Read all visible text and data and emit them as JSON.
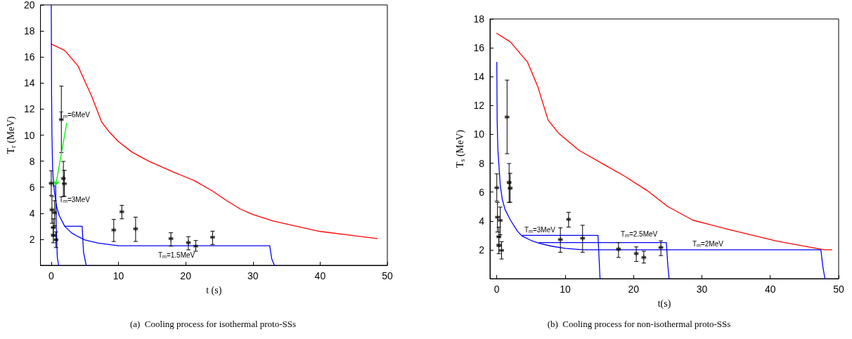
{
  "chart_data": [
    {
      "type": "line",
      "xlabel": "t (s)",
      "ylabel": "T$_{r}$ (MeV)",
      "xlim": [
        -1.6,
        50
      ],
      "xticks": [
        0,
        10,
        20,
        30,
        40,
        50
      ],
      "ylim": [
        0,
        20
      ],
      "yticks": [
        2,
        4,
        6,
        8,
        10,
        12,
        14,
        16,
        18,
        20
      ],
      "series": [
        {
          "color": "#ff0000",
          "x": [
            0,
            2,
            4,
            4.5,
            6,
            7.5,
            8.7,
            10,
            12,
            14.5,
            18,
            21.3,
            24,
            26,
            28.2,
            30,
            33,
            36.5,
            40,
            44.7,
            48.5
          ],
          "values": [
            17.0,
            16.5,
            15.3,
            14.7,
            13.0,
            11.0,
            10.2,
            9.5,
            8.7,
            8.0,
            7.2,
            6.5,
            5.7,
            5.0,
            4.3,
            3.9,
            3.4,
            3.0,
            2.6,
            2.3,
            2.05
          ]
        },
        {
          "color": "#0000ff",
          "x": [
            0,
            0.05,
            0.1,
            0.2,
            0.3,
            0.5,
            0.8,
            1.2,
            2,
            3,
            4,
            5,
            7,
            10,
            32.5,
            32.8,
            33.2
          ],
          "values": [
            20,
            13,
            10,
            7.5,
            6.5,
            5.5,
            4.5,
            3.8,
            3.0,
            2.5,
            2.2,
            1.95,
            1.7,
            1.5,
            1.5,
            0.5,
            0
          ]
        },
        {
          "color": "#0000ff",
          "x": [
            0.25,
            0.65,
            0.75,
            0.9,
            1.1
          ],
          "values": [
            6.1,
            6.1,
            3,
            0.6,
            0
          ]
        },
        {
          "color": "#0000ff",
          "x": [
            2,
            4.6,
            4.8,
            5.2
          ],
          "values": [
            3,
            3,
            1,
            0
          ]
        },
        {
          "type": "scatter",
          "color": "#000000",
          "marker": "cross",
          "x": [
            0,
            0.1,
            0.3,
            0.3,
            0.5,
            0.7,
            1.5,
            1.8,
            1.95,
            9.3,
            10.5,
            12.55,
            17.8,
            20.4,
            21.5,
            24.0
          ],
          "values": [
            6.3,
            4.26,
            2.9,
            2.33,
            4.04,
            1.96,
            11.2,
            6.67,
            6.27,
            2.71,
            4.11,
            2.8,
            2.05,
            1.74,
            1.47,
            2.16
          ],
          "errors": [
            [
              5.37,
              7.26
            ],
            [
              3.23,
              5.28
            ],
            [
              2.23,
              3.57
            ],
            [
              1.73,
              2.93
            ],
            [
              3.04,
              4.96
            ],
            [
              1.36,
              2.56
            ],
            [
              8.66,
              13.76
            ],
            [
              5.28,
              7.98
            ],
            [
              5.3,
              7.3
            ],
            [
              1.83,
              3.52
            ],
            [
              3.57,
              4.6
            ],
            [
              1.83,
              3.7
            ],
            [
              1.47,
              2.5
            ],
            [
              1.19,
              2.2
            ],
            [
              1.08,
              1.9
            ],
            [
              1.6,
              2.62
            ]
          ]
        }
      ],
      "annotations": [
        {
          "text": "T$_{m}$=6MeV",
          "x": 0.65,
          "y": 6.1
        },
        "T$_{m}$=3MeV",
        "T$_{m}$=1.5MeV",
        "(a)  Cooling process for isothermal proto-SSs"
      ]
    },
    {
      "type": "line",
      "xlabel": "t(s)",
      "ylabel": "T$_{s}$ (MeV)",
      "xlim": [
        -1,
        50
      ],
      "xticks": [
        0,
        10,
        20,
        30,
        40,
        50
      ],
      "ylim": [
        0,
        18
      ],
      "yticks": [
        2,
        4,
        6,
        8,
        10,
        12,
        14,
        16,
        18
      ],
      "series": [
        {
          "color": "#ff0000",
          "x": [
            0,
            2,
            4.5,
            6,
            7.5,
            9,
            12,
            15.9,
            18.7,
            22,
            25,
            28.7,
            34,
            41,
            47.9,
            49
          ],
          "values": [
            17,
            16.4,
            15.0,
            13.3,
            11.0,
            10.1,
            8.9,
            7.85,
            7.1,
            6.1,
            5.0,
            4.05,
            3.4,
            2.6,
            2.0,
            2.0
          ]
        },
        {
          "color": "#0000ff",
          "x": [
            0,
            0.05,
            0.15,
            0.3,
            0.5,
            0.8,
            1.2,
            2,
            3,
            3.7,
            5,
            6.2,
            8,
            10,
            12.6,
            47.4,
            47.7,
            48
          ],
          "values": [
            15,
            11,
            9,
            7.95,
            6.5,
            5.5,
            4.8,
            4.05,
            3.3,
            2.95,
            2.65,
            2.45,
            2.25,
            2.1,
            2.0,
            2.0,
            0.8,
            0
          ]
        },
        {
          "color": "#0000ff",
          "x": [
            3.7,
            14.8,
            15,
            15.1
          ],
          "values": [
            3,
            3,
            1,
            0
          ]
        },
        {
          "color": "#0000ff",
          "x": [
            6.2,
            24.8,
            25,
            25.2
          ],
          "values": [
            2.5,
            2.5,
            1,
            0
          ]
        },
        {
          "type": "scatter",
          "color": "#000000",
          "marker": "cross",
          "x": [
            0,
            0.1,
            0.3,
            0.3,
            0.5,
            0.7,
            1.5,
            1.8,
            1.95,
            9.3,
            10.5,
            12.55,
            17.8,
            20.4,
            21.5,
            24.0
          ],
          "values": [
            6.3,
            4.26,
            2.9,
            2.33,
            4.04,
            1.96,
            11.2,
            6.67,
            6.27,
            2.71,
            4.11,
            2.8,
            2.05,
            1.74,
            1.47,
            2.16
          ],
          "errors": [
            [
              5.37,
              7.26
            ],
            [
              3.23,
              5.28
            ],
            [
              2.23,
              3.57
            ],
            [
              1.73,
              2.93
            ],
            [
              3.04,
              4.96
            ],
            [
              1.36,
              2.56
            ],
            [
              8.66,
              13.76
            ],
            [
              5.28,
              7.98
            ],
            [
              5.3,
              7.3
            ],
            [
              1.83,
              3.52
            ],
            [
              3.57,
              4.6
            ],
            [
              1.83,
              3.7
            ],
            [
              1.47,
              2.5
            ],
            [
              1.19,
              2.2
            ],
            [
              1.08,
              1.9
            ],
            [
              1.6,
              2.62
            ]
          ]
        }
      ],
      "annotations": [
        "T$_{m}$=3MeV",
        "T$_{m}$=2.5MeV",
        "T$_{m}$=2MeV",
        "(b)  Cooling process for non-isothermal proto-SSs"
      ]
    }
  ]
}
